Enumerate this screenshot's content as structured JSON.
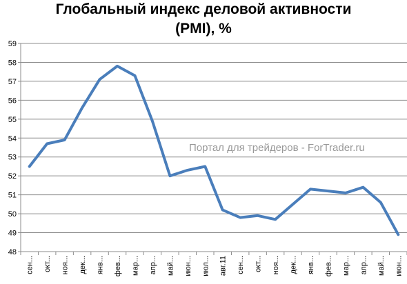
{
  "chart_data": {
    "type": "line",
    "title_line1": "Глобальный индекс деловой активности",
    "title_line2": "(PMI), %",
    "watermark": "Портал для трейдеров - ForTrader.ru",
    "xlabel": "",
    "ylabel": "",
    "ylim": [
      48,
      59
    ],
    "yticks": [
      48,
      49,
      50,
      51,
      52,
      53,
      54,
      55,
      56,
      57,
      58,
      59
    ],
    "grid": true,
    "legend": "none",
    "categories": [
      "сен...",
      "окт...",
      "ноя...",
      "дек...",
      "янв...",
      "фев...",
      "мар...",
      "апр...",
      "май...",
      "июн...",
      "июл...",
      "авг.11",
      "сен...",
      "окт...",
      "ноя...",
      "дек...",
      "янв...",
      "фев...",
      "мар...",
      "апр...",
      "май...",
      "июн..."
    ],
    "series": [
      {
        "values": [
          52.5,
          53.7,
          53.9,
          55.6,
          57.1,
          57.8,
          57.3,
          54.9,
          52.0,
          52.3,
          52.5,
          50.2,
          49.8,
          49.9,
          49.7,
          50.5,
          51.3,
          51.2,
          51.1,
          51.4,
          50.6,
          48.9
        ],
        "color": "#4a7ebb"
      }
    ]
  }
}
